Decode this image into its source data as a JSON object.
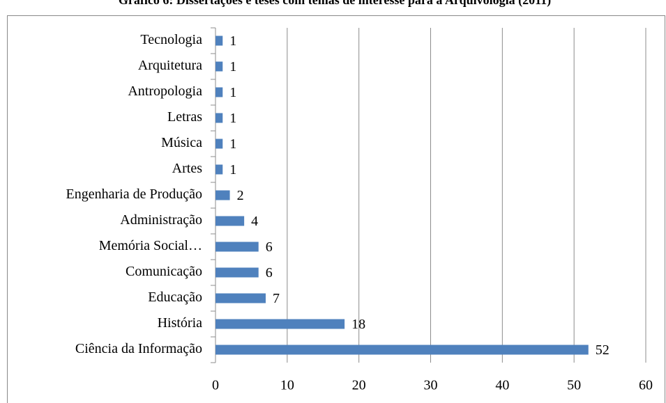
{
  "chart_data": {
    "type": "bar",
    "orientation": "horizontal",
    "title": "Gráfico 6: Dissertações e teses com temas de interesse para a Arquivologia (2011)",
    "categories": [
      "Ciência da Informação",
      "História",
      "Educação",
      "Comunicação",
      "Memória Social…",
      "Administração",
      "Engenharia de Produção",
      "Artes",
      "Música",
      "Letras",
      "Antropologia",
      "Arquitetura",
      "Tecnologia"
    ],
    "values": [
      52,
      18,
      7,
      6,
      6,
      4,
      2,
      1,
      1,
      1,
      1,
      1,
      1
    ],
    "color": "#4f81bd",
    "xlim": [
      0,
      60
    ],
    "xticks": [
      0,
      10,
      20,
      30,
      40,
      50,
      60
    ],
    "grid": true
  }
}
